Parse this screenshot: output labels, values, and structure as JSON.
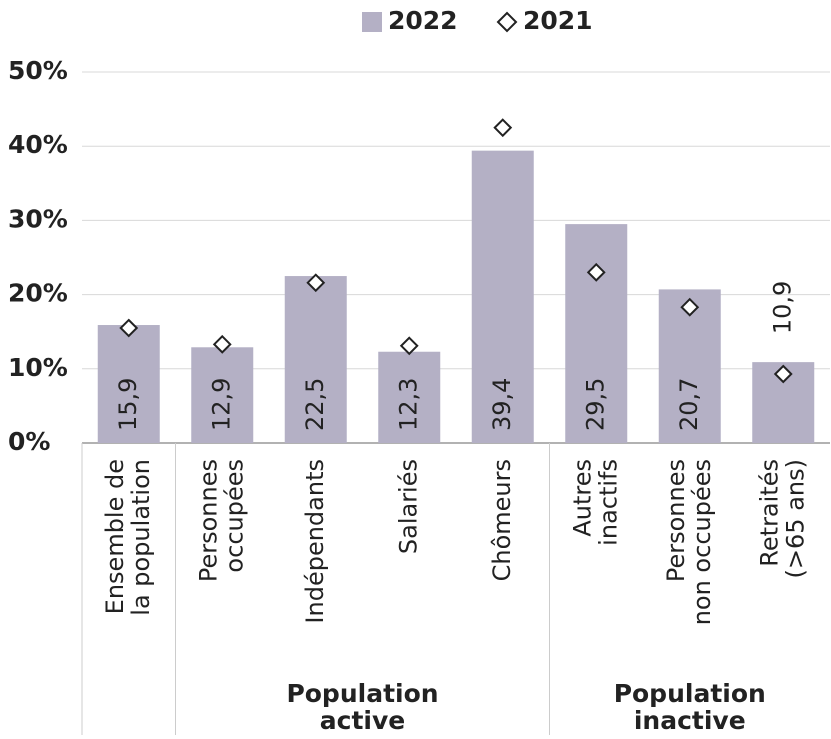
{
  "chart_data": {
    "type": "bar",
    "categories": [
      [
        "Ensemble de",
        "la population"
      ],
      [
        "Personnes",
        "occupées"
      ],
      [
        "Indépendants"
      ],
      [
        "Salariés"
      ],
      [
        "Chômeurs"
      ],
      [
        "Autres",
        "inactifs"
      ],
      [
        "Personnes",
        "non occupées"
      ],
      [
        "Retraités",
        "(>65 ans)"
      ]
    ],
    "series": [
      {
        "name": "2022",
        "color": "#b4b0c5",
        "marker": "bar",
        "values": [
          15.9,
          12.9,
          22.5,
          12.3,
          39.4,
          29.5,
          20.7,
          10.9
        ],
        "value_labels": [
          "15,9",
          "12,9",
          "22,5",
          "12,3",
          "39,4",
          "29,5",
          "20,7",
          "10,9"
        ]
      },
      {
        "name": "2021",
        "color": "#222222",
        "marker": "diamond",
        "values": [
          15.5,
          13.3,
          21.6,
          13.1,
          42.5,
          23.0,
          18.3,
          9.3
        ]
      }
    ],
    "groups": [
      {
        "label": [
          "Population",
          "active"
        ],
        "span": [
          1,
          4
        ]
      },
      {
        "label": [
          "Population",
          "inactive"
        ],
        "span": [
          5,
          7
        ]
      }
    ],
    "ylim": [
      0,
      50
    ],
    "yticks": [
      {
        "value": 0,
        "label": "0%"
      },
      {
        "value": 10,
        "label": "10%"
      },
      {
        "value": 20,
        "label": "20%"
      },
      {
        "value": 30,
        "label": "30%"
      },
      {
        "value": 40,
        "label": "40%"
      },
      {
        "value": 50,
        "label": "50%"
      }
    ],
    "grid": true,
    "legend": "top"
  }
}
